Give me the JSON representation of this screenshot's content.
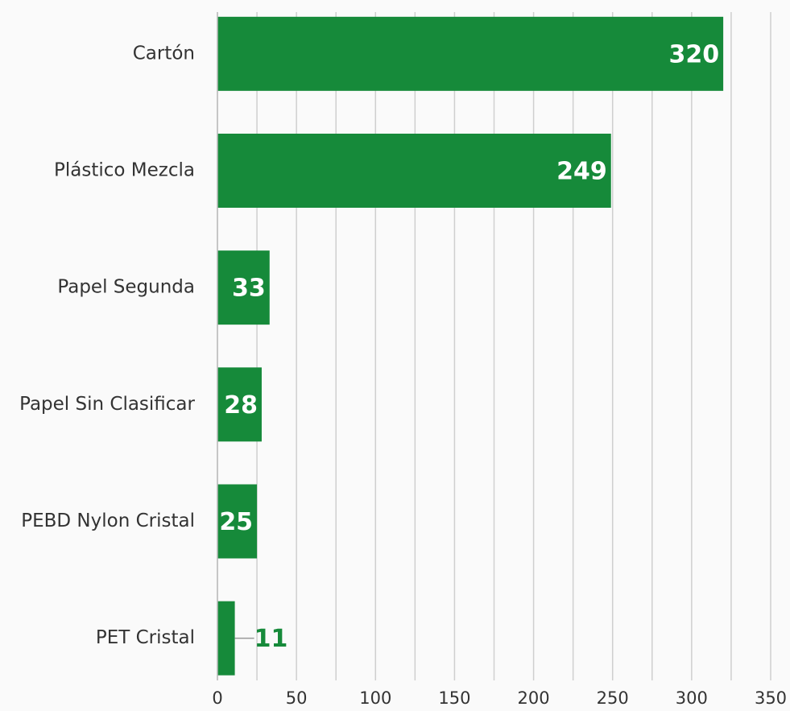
{
  "chart_data": {
    "type": "hbar",
    "categories": [
      "Cartón",
      "Plástico Mezcla",
      "Papel Segunda",
      "Papel Sin Clasificar",
      "PEBD Nylon Cristal",
      "PET Cristal"
    ],
    "values": [
      320,
      249,
      33,
      28,
      25,
      11
    ],
    "color": "#168a3a",
    "xlim": [
      0,
      350
    ],
    "xticks": [
      0,
      50,
      100,
      150,
      200,
      250,
      300,
      350
    ],
    "xminor_ticks": [
      25,
      75,
      125,
      175,
      225,
      275,
      325
    ],
    "grid": true
  }
}
